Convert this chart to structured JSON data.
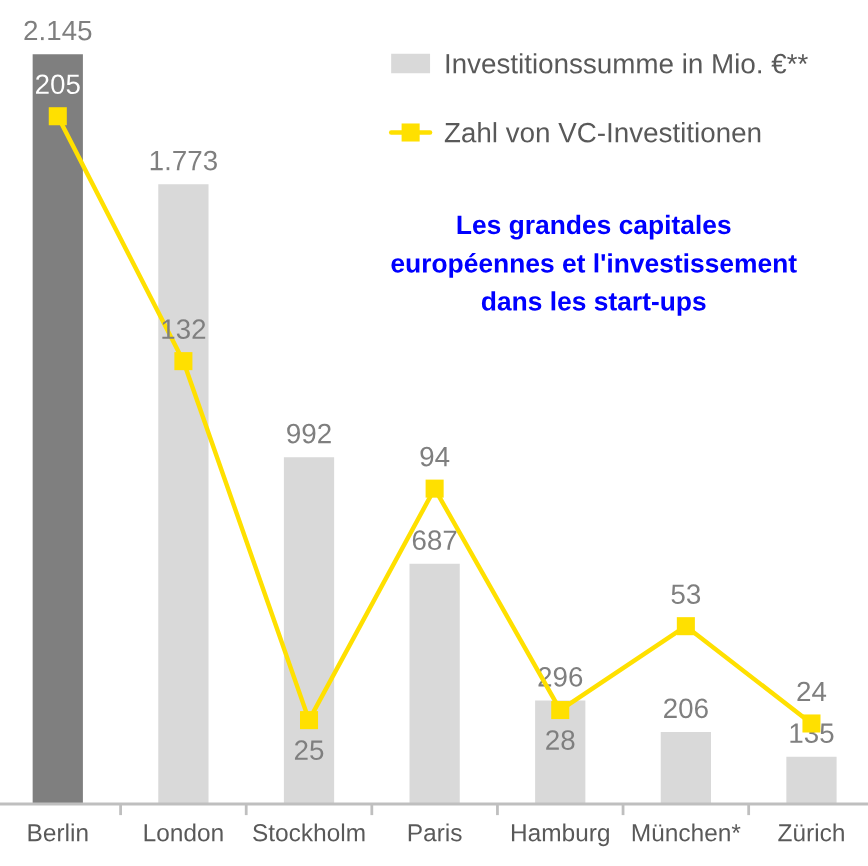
{
  "chart_data": {
    "type": "bar",
    "title": "Les grandes capitales\neuropéennes et l'investissement\ndans les start-ups",
    "categories": [
      "Berlin",
      "London",
      "Stockholm",
      "Paris",
      "Hamburg",
      "München*",
      "Zürich"
    ],
    "series": [
      {
        "name": "Investitionssumme in Mio. €**",
        "color": "#d9d9d9",
        "colors": [
          "#7f7f7f",
          "#d9d9d9",
          "#d9d9d9",
          "#d9d9d9",
          "#d9d9d9",
          "#d9d9d9",
          "#d9d9d9"
        ],
        "values": [
          2145,
          1773,
          992,
          687,
          296,
          206,
          135
        ],
        "value_labels": [
          "2.145",
          "1.773",
          "992",
          "687",
          "296",
          "206",
          "135"
        ]
      },
      {
        "name": "Zahl von VC-Investitionen",
        "type": "line",
        "axis": "y2",
        "color": "#ffe000",
        "marker": "square",
        "values": [
          205,
          132,
          25,
          94,
          28,
          53,
          24
        ],
        "value_labels": [
          "205",
          "132",
          "25",
          "94",
          "28",
          "53",
          "24"
        ]
      }
    ],
    "legend": "top right",
    "grid": false,
    "tick_labels": "x"
  }
}
